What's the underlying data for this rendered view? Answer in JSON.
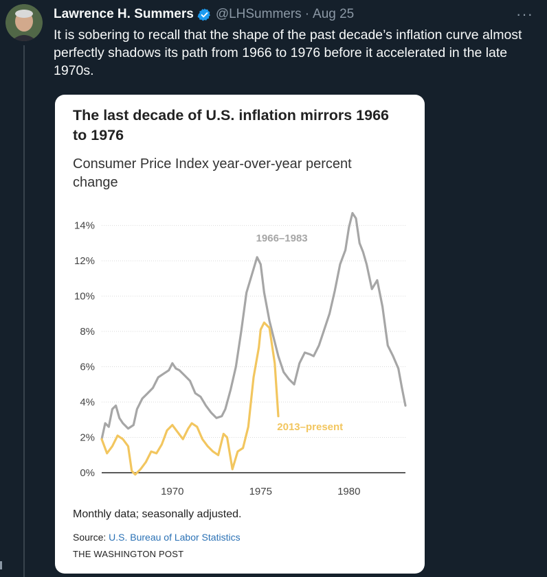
{
  "tweet": {
    "name": "Lawrence H. Summers",
    "handle": "@LHSummers",
    "separator": "·",
    "date": "Aug 25",
    "more": "···",
    "text": "It is sobering to recall that the shape of the past decade’s inflation curve almost perfectly shadows its path from 1966 to 1976 before it accelerated in the late 1970s."
  },
  "card": {
    "title": "The last decade of U.S. inflation mirrors 1966 to 1976",
    "subtitle": "Consumer Price Index year-over-year percent change",
    "note": "Monthly data; seasonally adjusted.",
    "source_label": "Source: ",
    "source_link": "U.S. Bureau of Labor Statistics",
    "credit": "THE WASHINGTON POST"
  },
  "colors": {
    "background": "#15202b",
    "gray_series": "#a6a6a6",
    "yellow_series": "#f2c65f",
    "verified": "#1d9bf0"
  },
  "chart_data": {
    "type": "line",
    "title": "The last decade of U.S. inflation mirrors 1966 to 1976",
    "subtitle": "Consumer Price Index year-over-year percent change",
    "x_ticks": [
      1970,
      1975,
      1980
    ],
    "xlim": [
      1966,
      1983.2
    ],
    "ylim": [
      0,
      14.8
    ],
    "y_ticks": [
      0,
      2,
      4,
      6,
      8,
      10,
      12,
      14
    ],
    "y_tick_labels": [
      "0%",
      "2%",
      "4%",
      "6%",
      "8%",
      "10%",
      "12%",
      "14%"
    ],
    "grid": "horizontal",
    "series": [
      {
        "name": "1966–1983",
        "color": "#a6a6a6",
        "x": [
          1966.0,
          1966.2,
          1966.4,
          1966.6,
          1966.8,
          1967.0,
          1967.2,
          1967.5,
          1967.8,
          1968.0,
          1968.3,
          1968.6,
          1968.9,
          1969.2,
          1969.5,
          1969.8,
          1970.0,
          1970.2,
          1970.4,
          1970.7,
          1971.0,
          1971.3,
          1971.6,
          1971.9,
          1972.2,
          1972.5,
          1972.8,
          1973.0,
          1973.3,
          1973.6,
          1973.9,
          1974.2,
          1974.5,
          1974.8,
          1975.0,
          1975.2,
          1975.5,
          1975.8,
          1976.0,
          1976.3,
          1976.6,
          1976.9,
          1977.2,
          1977.5,
          1977.8,
          1978.0,
          1978.3,
          1978.6,
          1978.9,
          1979.2,
          1979.5,
          1979.8,
          1980.0,
          1980.2,
          1980.4,
          1980.6,
          1980.8,
          1981.0,
          1981.3,
          1981.6,
          1981.9,
          1982.2,
          1982.5,
          1982.8,
          1983.0,
          1983.2
        ],
        "y": [
          1.9,
          2.8,
          2.6,
          3.6,
          3.8,
          3.1,
          2.8,
          2.5,
          2.7,
          3.6,
          4.2,
          4.5,
          4.8,
          5.4,
          5.6,
          5.8,
          6.2,
          5.9,
          5.8,
          5.5,
          5.2,
          4.5,
          4.3,
          3.8,
          3.4,
          3.1,
          3.2,
          3.6,
          4.7,
          6.0,
          8.0,
          10.2,
          11.2,
          12.2,
          11.8,
          10.2,
          8.6,
          7.4,
          6.6,
          5.7,
          5.3,
          5.0,
          6.2,
          6.8,
          6.7,
          6.6,
          7.2,
          8.1,
          9.0,
          10.3,
          11.8,
          12.6,
          13.9,
          14.7,
          14.4,
          13.0,
          12.5,
          11.8,
          10.4,
          10.9,
          9.4,
          7.2,
          6.6,
          5.9,
          4.8,
          3.8
        ]
      },
      {
        "name": "2013–present",
        "color": "#f2c65f",
        "x": [
          1966.0,
          1966.3,
          1966.6,
          1966.9,
          1967.2,
          1967.5,
          1967.7,
          1967.9,
          1968.2,
          1968.5,
          1968.8,
          1969.1,
          1969.4,
          1969.7,
          1970.0,
          1970.3,
          1970.6,
          1970.9,
          1971.1,
          1971.4,
          1971.7,
          1972.0,
          1972.3,
          1972.6,
          1972.9,
          1973.1,
          1973.4,
          1973.7,
          1974.0,
          1974.3,
          1974.6,
          1974.9,
          1975.0,
          1975.2,
          1975.5,
          1975.8,
          1976.0
        ],
        "y": [
          1.9,
          1.1,
          1.5,
          2.1,
          1.9,
          1.5,
          0.1,
          -0.1,
          0.2,
          0.6,
          1.2,
          1.1,
          1.6,
          2.4,
          2.7,
          2.3,
          1.9,
          2.5,
          2.8,
          2.6,
          1.9,
          1.5,
          1.2,
          1.0,
          2.2,
          2.0,
          0.2,
          1.2,
          1.4,
          2.6,
          5.4,
          7.1,
          8.1,
          8.5,
          8.2,
          6.2,
          3.2
        ]
      }
    ],
    "annotations": [
      {
        "text": "1966–1983",
        "color": "#a6a6a6",
        "x": 1976.2,
        "y": 13.1
      },
      {
        "text": "2013–present",
        "color": "#f2c65f",
        "x": 1977.8,
        "y": 2.4
      }
    ]
  }
}
